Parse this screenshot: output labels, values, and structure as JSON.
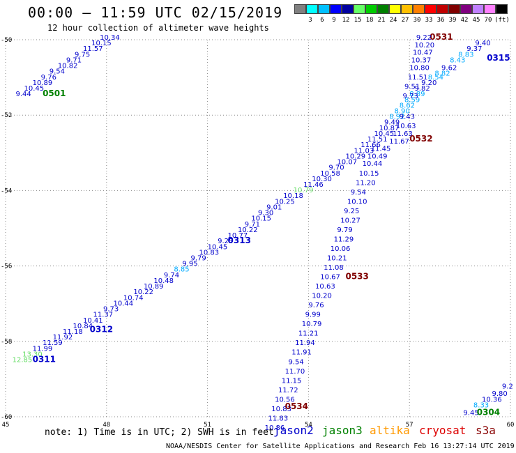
{
  "title": "00:00 – 11:59 UTC 02/15/2019",
  "subtitle": "12 hour collection of altimeter wave heights",
  "legend": {
    "unit": "(ft)",
    "colors": [
      "#808080",
      "#00ffff",
      "#00c0ff",
      "#0000ff",
      "#0000a0",
      "#66ff66",
      "#00cc00",
      "#008000",
      "#ffff00",
      "#ffc000",
      "#ff8000",
      "#ff0000",
      "#c00000",
      "#800000",
      "#800080",
      "#c080ff",
      "#ff80ff",
      "#000000"
    ],
    "labels": [
      "3",
      "6",
      "9",
      "12",
      "15",
      "18",
      "21",
      "24",
      "27",
      "30",
      "33",
      "36",
      "39",
      "42",
      "45",
      "70"
    ]
  },
  "axes": {
    "x_ticks": [
      "45",
      "48",
      "51",
      "54",
      "57",
      "60"
    ],
    "y_ticks": [
      "-50",
      "-52",
      "-54",
      "-56",
      "-58",
      "-60"
    ]
  },
  "note": "note:  1) Time is in UTC;  2) SWH is in feet",
  "satellites": {
    "jason2": "jason2",
    "jason3": "jason3",
    "altika": "altika",
    "cryosat": "cryosat",
    "s3a": "s3a"
  },
  "footer": "NOAA/NESDIS Center for Satellite Applications and Research   Feb 16 13:27:14 UTC 2019",
  "chart_data": {
    "type": "scatter",
    "xlim": [
      45,
      60
    ],
    "ylim": [
      -60,
      -50
    ],
    "passes": [
      {
        "id": "0501",
        "color": "#008000",
        "label_at": [
          46.1,
          -51.5
        ],
        "points": [
          {
            "lon": 45.3,
            "lat": -51.5,
            "v": "9.44",
            "c": "#0000cc"
          },
          {
            "lon": 45.55,
            "lat": -51.35,
            "v": "10.45",
            "c": "#0000cc"
          },
          {
            "lon": 45.8,
            "lat": -51.2,
            "v": "10.89",
            "c": "#0000cc"
          },
          {
            "lon": 46.05,
            "lat": -51.05,
            "v": "9.76",
            "c": "#0000cc"
          },
          {
            "lon": 46.3,
            "lat": -50.9,
            "v": "9.54",
            "c": "#0000cc"
          },
          {
            "lon": 46.55,
            "lat": -50.75,
            "v": "10.82",
            "c": "#0000cc"
          },
          {
            "lon": 46.8,
            "lat": -50.6,
            "v": "9.71",
            "c": "#0000cc"
          },
          {
            "lon": 47.05,
            "lat": -50.45,
            "v": "9.75",
            "c": "#0000cc"
          },
          {
            "lon": 47.3,
            "lat": -50.3,
            "v": "11.57",
            "c": "#0000cc"
          },
          {
            "lon": 47.55,
            "lat": -50.15,
            "v": "10.15",
            "c": "#0000cc"
          },
          {
            "lon": 47.8,
            "lat": -50.0,
            "v": "10.34",
            "c": "#0000cc"
          }
        ]
      },
      {
        "id": "0311",
        "color": "#0000cc",
        "label_at": [
          45.8,
          -58.55
        ],
        "points": [
          {
            "lon": 45.2,
            "lat": -58.55,
            "v": "12.85",
            "c": "#66dd66"
          },
          {
            "lon": 45.5,
            "lat": -58.4,
            "v": "13.30",
            "c": "#66dd66"
          },
          {
            "lon": 45.8,
            "lat": -58.25,
            "v": "11.99",
            "c": "#0000cc"
          },
          {
            "lon": 46.1,
            "lat": -58.1,
            "v": "11.59",
            "c": "#0000cc"
          }
        ]
      },
      {
        "id": "0312",
        "color": "#0000cc",
        "label_at": [
          47.5,
          -57.75
        ],
        "points": [
          {
            "lon": 46.4,
            "lat": -57.95,
            "v": "11.92",
            "c": "#0000cc"
          },
          {
            "lon": 46.7,
            "lat": -57.8,
            "v": "11.18",
            "c": "#0000cc"
          },
          {
            "lon": 47.0,
            "lat": -57.65,
            "v": "10.84",
            "c": "#0000cc"
          },
          {
            "lon": 47.3,
            "lat": -57.5,
            "v": "10.41",
            "c": "#0000cc"
          },
          {
            "lon": 47.6,
            "lat": -57.35,
            "v": "11.37",
            "c": "#0000cc"
          },
          {
            "lon": 47.9,
            "lat": -57.2,
            "v": "9.73",
            "c": "#0000cc"
          },
          {
            "lon": 48.2,
            "lat": -57.05,
            "v": "10.44",
            "c": "#0000cc"
          },
          {
            "lon": 48.5,
            "lat": -56.9,
            "v": "10.74",
            "c": "#0000cc"
          },
          {
            "lon": 48.8,
            "lat": -56.75,
            "v": "10.22",
            "c": "#0000cc"
          },
          {
            "lon": 49.1,
            "lat": -56.6,
            "v": "10.89",
            "c": "#0000cc"
          },
          {
            "lon": 49.4,
            "lat": -56.45,
            "v": "10.48",
            "c": "#0000cc"
          },
          {
            "lon": 49.7,
            "lat": -56.3,
            "v": "9.74",
            "c": "#0000cc"
          },
          {
            "lon": 50.0,
            "lat": -56.15,
            "v": "8.85",
            "c": "#00aaff"
          },
          {
            "lon": 50.25,
            "lat": -56.0,
            "v": "9.95",
            "c": "#0000cc"
          },
          {
            "lon": 50.5,
            "lat": -55.85,
            "v": "9.79",
            "c": "#0000cc"
          },
          {
            "lon": 50.75,
            "lat": -55.7,
            "v": "10.83",
            "c": "#0000cc"
          }
        ]
      },
      {
        "id": "0313",
        "color": "#0000cc",
        "label_at": [
          51.6,
          -55.4
        ],
        "points": [
          {
            "lon": 51.0,
            "lat": -55.55,
            "v": "10.45",
            "c": "#0000cc"
          },
          {
            "lon": 51.3,
            "lat": -55.4,
            "v": "9.25",
            "c": "#0000cc"
          },
          {
            "lon": 51.6,
            "lat": -55.25,
            "v": "10.77",
            "c": "#0000cc"
          },
          {
            "lon": 51.9,
            "lat": -55.1,
            "v": "10.22",
            "c": "#0000cc"
          },
          {
            "lon": 52.1,
            "lat": -54.95,
            "v": "9.71",
            "c": "#0000cc"
          },
          {
            "lon": 52.3,
            "lat": -54.8,
            "v": "10.15",
            "c": "#0000cc"
          },
          {
            "lon": 52.5,
            "lat": -54.65,
            "v": "9.30",
            "c": "#0000cc"
          },
          {
            "lon": 52.75,
            "lat": -54.5,
            "v": "9.01",
            "c": "#0000cc"
          },
          {
            "lon": 53.0,
            "lat": -54.35,
            "v": "10.25",
            "c": "#0000cc"
          },
          {
            "lon": 53.25,
            "lat": -54.2,
            "v": "10.18",
            "c": "#0000cc"
          },
          {
            "lon": 53.55,
            "lat": -54.05,
            "v": "10.79",
            "c": "#66dd66"
          },
          {
            "lon": 53.85,
            "lat": -53.9,
            "v": "11.46",
            "c": "#0000cc"
          },
          {
            "lon": 54.1,
            "lat": -53.75,
            "v": "10.30",
            "c": "#0000cc"
          },
          {
            "lon": 54.35,
            "lat": -53.6,
            "v": "10.58",
            "c": "#0000cc"
          },
          {
            "lon": 54.6,
            "lat": -53.45,
            "v": "9.70",
            "c": "#0000cc"
          },
          {
            "lon": 54.85,
            "lat": -53.3,
            "v": "10.07",
            "c": "#0000cc"
          },
          {
            "lon": 55.1,
            "lat": -53.15,
            "v": "10.29",
            "c": "#0000cc"
          },
          {
            "lon": 55.35,
            "lat": -53.0,
            "v": "11.03",
            "c": "#0000cc"
          },
          {
            "lon": 55.55,
            "lat": -52.85,
            "v": "11.66",
            "c": "#0000cc"
          },
          {
            "lon": 55.75,
            "lat": -52.7,
            "v": "11.51",
            "c": "#0000cc"
          },
          {
            "lon": 55.95,
            "lat": -52.55,
            "v": "10.45",
            "c": "#0000cc"
          },
          {
            "lon": 56.1,
            "lat": -52.4,
            "v": "10.87",
            "c": "#0000cc"
          },
          {
            "lon": 56.25,
            "lat": -52.25,
            "v": "9.49",
            "c": "#0000cc"
          },
          {
            "lon": 56.4,
            "lat": -52.1,
            "v": "8.92",
            "c": "#00aaff"
          },
          {
            "lon": 56.55,
            "lat": -51.95,
            "v": "8.90",
            "c": "#00aaff"
          },
          {
            "lon": 56.7,
            "lat": -51.8,
            "v": "8.62",
            "c": "#00aaff"
          },
          {
            "lon": 56.85,
            "lat": -51.65,
            "v": "8.59",
            "c": "#00aaff"
          },
          {
            "lon": 57.0,
            "lat": -51.5,
            "v": "8.89",
            "c": "#00aaff"
          },
          {
            "lon": 57.15,
            "lat": -51.35,
            "v": "9.82",
            "c": "#0000cc"
          },
          {
            "lon": 57.35,
            "lat": -51.2,
            "v": "9.20",
            "c": "#0000cc"
          },
          {
            "lon": 57.55,
            "lat": -51.05,
            "v": "8.54",
            "c": "#00aaff"
          },
          {
            "lon": 57.75,
            "lat": -50.95,
            "v": "8.82",
            "c": "#00aaff"
          },
          {
            "lon": 57.95,
            "lat": -50.8,
            "v": "9.62",
            "c": "#0000cc"
          },
          {
            "lon": 58.2,
            "lat": -50.6,
            "v": "8.43",
            "c": "#00aaff"
          },
          {
            "lon": 58.45,
            "lat": -50.45,
            "v": "8.83",
            "c": "#00aaff"
          },
          {
            "lon": 58.7,
            "lat": -50.3,
            "v": "9.37",
            "c": "#0000cc"
          },
          {
            "lon": 58.95,
            "lat": -50.15,
            "v": "9.40",
            "c": "#0000cc"
          }
        ]
      },
      {
        "id": "0315",
        "color": "#0000cc",
        "label_at": [
          59.3,
          -50.55
        ],
        "points": []
      },
      {
        "id": "0531",
        "color": "#800000",
        "label_at": [
          57.6,
          -50.0
        ],
        "points": []
      },
      {
        "id": "0532",
        "color": "#800000",
        "label_at": [
          57.0,
          -52.7
        ],
        "points": [
          {
            "lon": 57.2,
            "lat": -50.0,
            "v": "9.22",
            "c": "#0000cc"
          },
          {
            "lon": 57.15,
            "lat": -50.2,
            "v": "10.20",
            "c": "#0000cc"
          },
          {
            "lon": 57.1,
            "lat": -50.4,
            "v": "10.47",
            "c": "#0000cc"
          },
          {
            "lon": 57.05,
            "lat": -50.6,
            "v": "10.37",
            "c": "#0000cc"
          },
          {
            "lon": 57.0,
            "lat": -50.8,
            "v": "10.80",
            "c": "#0000cc"
          },
          {
            "lon": 56.95,
            "lat": -51.05,
            "v": "11.51",
            "c": "#0000cc"
          },
          {
            "lon": 56.85,
            "lat": -51.3,
            "v": "9.51",
            "c": "#0000cc"
          },
          {
            "lon": 56.8,
            "lat": -51.55,
            "v": "9.73",
            "c": "#0000cc"
          },
          {
            "lon": 56.7,
            "lat": -52.1,
            "v": "9.43",
            "c": "#0000cc"
          },
          {
            "lon": 56.6,
            "lat": -52.35,
            "v": "10.63",
            "c": "#0000cc"
          },
          {
            "lon": 56.5,
            "lat": -52.55,
            "v": "11.63",
            "c": "#0000cc"
          },
          {
            "lon": 56.4,
            "lat": -52.75,
            "v": "11.67",
            "c": "#0000cc"
          }
        ]
      },
      {
        "id": "0533",
        "color": "#800000",
        "label_at": [
          55.1,
          -56.35
        ],
        "points": [
          {
            "lon": 55.85,
            "lat": -52.95,
            "v": "11.45",
            "c": "#0000cc"
          },
          {
            "lon": 55.75,
            "lat": -53.15,
            "v": "10.49",
            "c": "#0000cc"
          },
          {
            "lon": 55.6,
            "lat": -53.35,
            "v": "10.44",
            "c": "#0000cc"
          },
          {
            "lon": 55.5,
            "lat": -53.6,
            "v": "10.15",
            "c": "#0000cc"
          },
          {
            "lon": 55.4,
            "lat": -53.85,
            "v": "11.20",
            "c": "#0000cc"
          },
          {
            "lon": 55.25,
            "lat": -54.1,
            "v": "9.54",
            "c": "#0000cc"
          },
          {
            "lon": 55.15,
            "lat": -54.35,
            "v": "10.10",
            "c": "#0000cc"
          },
          {
            "lon": 55.05,
            "lat": -54.6,
            "v": "9.25",
            "c": "#0000cc"
          },
          {
            "lon": 54.95,
            "lat": -54.85,
            "v": "10.27",
            "c": "#0000cc"
          },
          {
            "lon": 54.85,
            "lat": -55.1,
            "v": "9.79",
            "c": "#0000cc"
          },
          {
            "lon": 54.75,
            "lat": -55.35,
            "v": "11.29",
            "c": "#0000cc"
          },
          {
            "lon": 54.65,
            "lat": -55.6,
            "v": "10.06",
            "c": "#0000cc"
          },
          {
            "lon": 54.55,
            "lat": -55.85,
            "v": "10.21",
            "c": "#0000cc"
          },
          {
            "lon": 54.45,
            "lat": -56.1,
            "v": "11.08",
            "c": "#0000cc"
          },
          {
            "lon": 54.35,
            "lat": -56.35,
            "v": "10.67",
            "c": "#0000cc"
          }
        ]
      },
      {
        "id": "0534",
        "color": "#800000",
        "label_at": [
          53.3,
          -59.8
        ],
        "points": [
          {
            "lon": 54.2,
            "lat": -56.6,
            "v": "10.63",
            "c": "#0000cc"
          },
          {
            "lon": 54.1,
            "lat": -56.85,
            "v": "10.20",
            "c": "#0000cc"
          },
          {
            "lon": 54.0,
            "lat": -57.1,
            "v": "9.76",
            "c": "#0000cc"
          },
          {
            "lon": 53.9,
            "lat": -57.35,
            "v": "9.99",
            "c": "#0000cc"
          },
          {
            "lon": 53.8,
            "lat": -57.6,
            "v": "10.79",
            "c": "#0000cc"
          },
          {
            "lon": 53.7,
            "lat": -57.85,
            "v": "11.21",
            "c": "#0000cc"
          },
          {
            "lon": 53.6,
            "lat": -58.1,
            "v": "11.94",
            "c": "#0000cc"
          },
          {
            "lon": 53.5,
            "lat": -58.35,
            "v": "11.91",
            "c": "#0000cc"
          },
          {
            "lon": 53.4,
            "lat": -58.6,
            "v": "9.54",
            "c": "#0000cc"
          },
          {
            "lon": 53.3,
            "lat": -58.85,
            "v": "11.70",
            "c": "#0000cc"
          },
          {
            "lon": 53.2,
            "lat": -59.1,
            "v": "11.15",
            "c": "#0000cc"
          },
          {
            "lon": 53.1,
            "lat": -59.35,
            "v": "11.72",
            "c": "#0000cc"
          },
          {
            "lon": 53.0,
            "lat": -59.6,
            "v": "10.56",
            "c": "#0000cc"
          },
          {
            "lon": 52.9,
            "lat": -59.85,
            "v": "10.83",
            "c": "#0000cc"
          },
          {
            "lon": 52.8,
            "lat": -60.1,
            "v": "11.83",
            "c": "#0000cc"
          },
          {
            "lon": 52.7,
            "lat": -60.35,
            "v": "10.86",
            "c": "#0000cc"
          }
        ]
      },
      {
        "id": "0304",
        "color": "#008000",
        "label_at": [
          59.0,
          -59.95
        ],
        "points": [
          {
            "lon": 58.6,
            "lat": -59.95,
            "v": "9.45",
            "c": "#0000cc"
          },
          {
            "lon": 58.9,
            "lat": -59.75,
            "v": "8.33",
            "c": "#00aaff"
          },
          {
            "lon": 59.15,
            "lat": -59.6,
            "v": "10.36",
            "c": "#0000cc"
          },
          {
            "lon": 59.45,
            "lat": -59.45,
            "v": "9.80",
            "c": "#0000cc"
          },
          {
            "lon": 59.75,
            "lat": -59.25,
            "v": "9.2",
            "c": "#0000cc"
          }
        ]
      }
    ]
  }
}
